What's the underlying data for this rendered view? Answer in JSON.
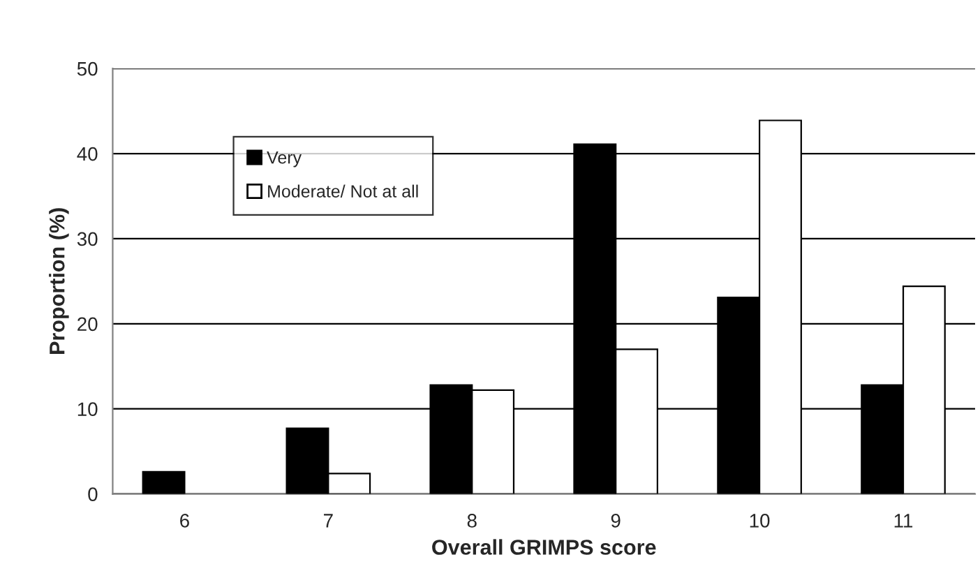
{
  "chart_data": {
    "type": "bar",
    "xlabel": "Overall GRIMPS score",
    "ylabel": "Proportion (%)",
    "categories": [
      "6",
      "7",
      "8",
      "9",
      "10",
      "11"
    ],
    "series": [
      {
        "name": "Very",
        "color": "#000000",
        "values": [
          2.6,
          7.7,
          12.8,
          41.1,
          23.1,
          12.8
        ]
      },
      {
        "name": "Moderate/ Not at all",
        "color": "#ffffff",
        "values": [
          null,
          2.4,
          12.2,
          17.0,
          43.9,
          24.4
        ]
      }
    ],
    "ylim": [
      0,
      50
    ],
    "yticks": [
      0,
      10,
      20,
      30,
      40,
      50
    ],
    "grid": "y",
    "legend": "top left"
  }
}
